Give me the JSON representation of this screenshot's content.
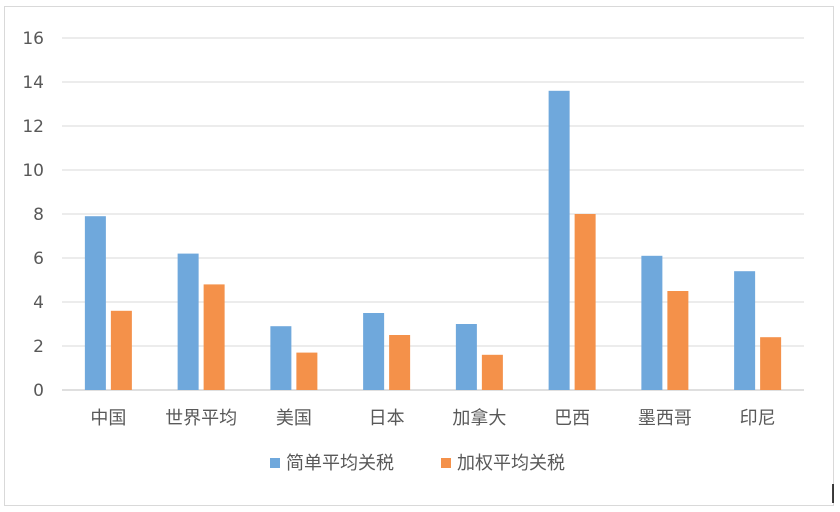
{
  "chart_data": {
    "type": "bar",
    "title": "",
    "xlabel": "",
    "ylabel": "",
    "ylim": [
      0,
      16
    ],
    "yticks": [
      0,
      2,
      4,
      6,
      8,
      10,
      12,
      14,
      16
    ],
    "grid": true,
    "legend_position": "bottom",
    "categories": [
      "中国",
      "世界平均",
      "美国",
      "日本",
      "加拿大",
      "巴西",
      "墨西哥",
      "印尼"
    ],
    "series": [
      {
        "name": "简单平均关税",
        "color": "#6FA8DC",
        "values": [
          7.9,
          6.2,
          2.9,
          3.5,
          3.0,
          13.6,
          6.1,
          5.4
        ]
      },
      {
        "name": "加权平均关税",
        "color": "#F4914A",
        "values": [
          3.6,
          4.8,
          1.7,
          2.5,
          1.6,
          8.0,
          4.5,
          2.4
        ]
      }
    ]
  }
}
